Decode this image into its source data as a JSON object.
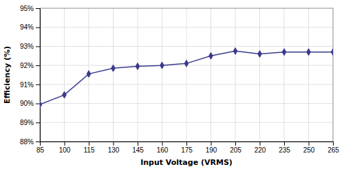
{
  "chart_data": {
    "type": "line",
    "x_label": "Input Voltage (VRMS)",
    "y_label": "Efficiency (%)",
    "x": [
      85,
      100,
      115,
      130,
      145,
      160,
      175,
      190,
      205,
      220,
      235,
      250,
      265
    ],
    "values": [
      89.95,
      90.45,
      91.55,
      91.85,
      91.95,
      92.0,
      92.1,
      92.5,
      92.75,
      92.6,
      92.7,
      92.7,
      92.7
    ],
    "color": "#3a3a8c",
    "marker": "diamond",
    "xlim": [
      85,
      265
    ],
    "ylim": [
      88,
      95
    ],
    "xticks": [
      85,
      100,
      115,
      130,
      145,
      160,
      175,
      190,
      205,
      220,
      235,
      250,
      265
    ],
    "yticks": [
      {
        "value": 88,
        "label": "88%"
      },
      {
        "value": 89,
        "label": "89%"
      },
      {
        "value": 90,
        "label": "90%"
      },
      {
        "value": 91,
        "label": "91%"
      },
      {
        "value": 92,
        "label": "92%"
      },
      {
        "value": 93,
        "label": "93%"
      },
      {
        "value": 94,
        "label": "94%"
      },
      {
        "value": 95,
        "label": "95%"
      }
    ],
    "grid": true
  }
}
